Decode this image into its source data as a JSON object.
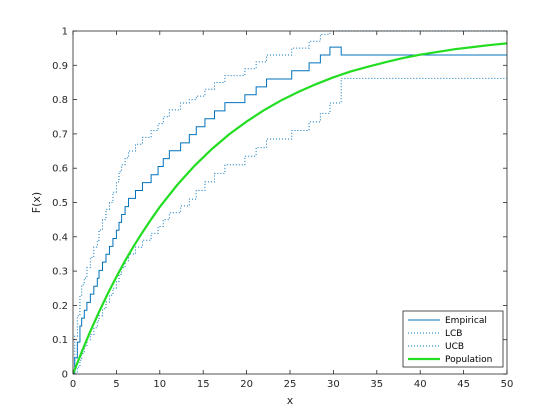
{
  "chart_data": {
    "type": "line",
    "title": "",
    "xlabel": "x",
    "ylabel": "F(x)",
    "xlim": [
      0,
      50
    ],
    "ylim": [
      0,
      1
    ],
    "xticks": [
      "0",
      "5",
      "10",
      "15",
      "20",
      "25",
      "30",
      "35",
      "40",
      "45",
      "50"
    ],
    "yticks": [
      "0",
      "0.1",
      "0.2",
      "0.3",
      "0.4",
      "0.5",
      "0.6",
      "0.7",
      "0.8",
      "0.9",
      "1"
    ],
    "grid": false,
    "legend_position": "bottom-right",
    "colors": {
      "empirical": "#0072BD",
      "bounds": "#0072BD",
      "population": "#22DD22",
      "axes": "#262626"
    },
    "series": [
      {
        "name": "Empirical",
        "style": "step",
        "x": [
          0,
          0.2,
          0.5,
          0.8,
          1.0,
          1.3,
          1.6,
          2.0,
          2.4,
          2.8,
          3.0,
          3.4,
          3.8,
          4.2,
          4.6,
          5.0,
          5.3,
          5.6,
          6.0,
          6.4,
          7.2,
          8.0,
          9.0,
          9.8,
          10.4,
          11.1,
          12.4,
          13.4,
          14.2,
          15.2,
          16.3,
          17.5,
          19.8,
          21.1,
          22.3,
          25.2,
          27.2,
          28.5,
          29.6,
          30.9,
          50
        ],
        "y": [
          0,
          0.047,
          0.093,
          0.14,
          0.163,
          0.186,
          0.209,
          0.233,
          0.256,
          0.279,
          0.302,
          0.326,
          0.349,
          0.372,
          0.395,
          0.419,
          0.442,
          0.465,
          0.488,
          0.512,
          0.535,
          0.558,
          0.581,
          0.605,
          0.628,
          0.651,
          0.674,
          0.698,
          0.721,
          0.744,
          0.767,
          0.791,
          0.814,
          0.837,
          0.86,
          0.884,
          0.907,
          0.93,
          0.953,
          0.93,
          0.93
        ]
      },
      {
        "name": "LCB",
        "style": "dotted-step",
        "x": [
          0,
          0.2,
          0.5,
          0.8,
          1.0,
          1.3,
          1.6,
          2.0,
          2.4,
          2.8,
          3.0,
          3.4,
          3.8,
          4.2,
          4.6,
          5.0,
          5.3,
          5.6,
          6.0,
          6.4,
          7.2,
          8.0,
          9.0,
          9.8,
          10.4,
          11.1,
          12.4,
          13.4,
          14.2,
          15.2,
          16.3,
          17.5,
          19.8,
          21.1,
          22.3,
          25.2,
          27.2,
          28.5,
          29.6,
          30.9,
          50
        ],
        "y": [
          0,
          0,
          0.02,
          0.04,
          0.06,
          0.08,
          0.1,
          0.115,
          0.135,
          0.155,
          0.17,
          0.19,
          0.21,
          0.23,
          0.25,
          0.27,
          0.29,
          0.31,
          0.33,
          0.35,
          0.37,
          0.39,
          0.41,
          0.43,
          0.45,
          0.47,
          0.49,
          0.51,
          0.535,
          0.56,
          0.585,
          0.61,
          0.635,
          0.66,
          0.685,
          0.71,
          0.735,
          0.76,
          0.79,
          0.862,
          0.862
        ]
      },
      {
        "name": "UCB",
        "style": "dotted-step",
        "x": [
          0,
          0.2,
          0.5,
          0.8,
          1.0,
          1.3,
          1.6,
          2.0,
          2.4,
          2.8,
          3.0,
          3.4,
          3.8,
          4.2,
          4.6,
          5.0,
          5.3,
          5.6,
          6.0,
          6.4,
          7.2,
          8.0,
          9.0,
          9.8,
          10.4,
          11.1,
          12.4,
          13.4,
          14.2,
          15.2,
          16.3,
          17.5,
          19.8,
          21.1,
          22.3,
          25.2,
          27.2,
          28.5,
          29.6,
          30.9,
          50
        ],
        "y": [
          0,
          0.11,
          0.17,
          0.23,
          0.26,
          0.28,
          0.31,
          0.34,
          0.37,
          0.39,
          0.42,
          0.45,
          0.48,
          0.5,
          0.53,
          0.56,
          0.59,
          0.61,
          0.63,
          0.65,
          0.67,
          0.69,
          0.71,
          0.73,
          0.75,
          0.77,
          0.79,
          0.8,
          0.81,
          0.83,
          0.85,
          0.87,
          0.89,
          0.91,
          0.93,
          0.95,
          0.97,
          0.99,
          1,
          1,
          1
        ]
      },
      {
        "name": "Population",
        "style": "line",
        "function": "1 - exp(-x/15)",
        "x": [
          0,
          1,
          2,
          3,
          4,
          5,
          6,
          7,
          8,
          9,
          10,
          12,
          14,
          16,
          18,
          20,
          22,
          24,
          26,
          28,
          30,
          32,
          34,
          36,
          38,
          40,
          42,
          44,
          46,
          48,
          50
        ],
        "y": [
          0,
          0.064,
          0.125,
          0.181,
          0.234,
          0.283,
          0.33,
          0.373,
          0.413,
          0.451,
          0.487,
          0.551,
          0.607,
          0.656,
          0.699,
          0.736,
          0.769,
          0.798,
          0.823,
          0.845,
          0.865,
          0.882,
          0.896,
          0.909,
          0.921,
          0.931,
          0.939,
          0.947,
          0.953,
          0.959,
          0.964
        ]
      }
    ]
  }
}
